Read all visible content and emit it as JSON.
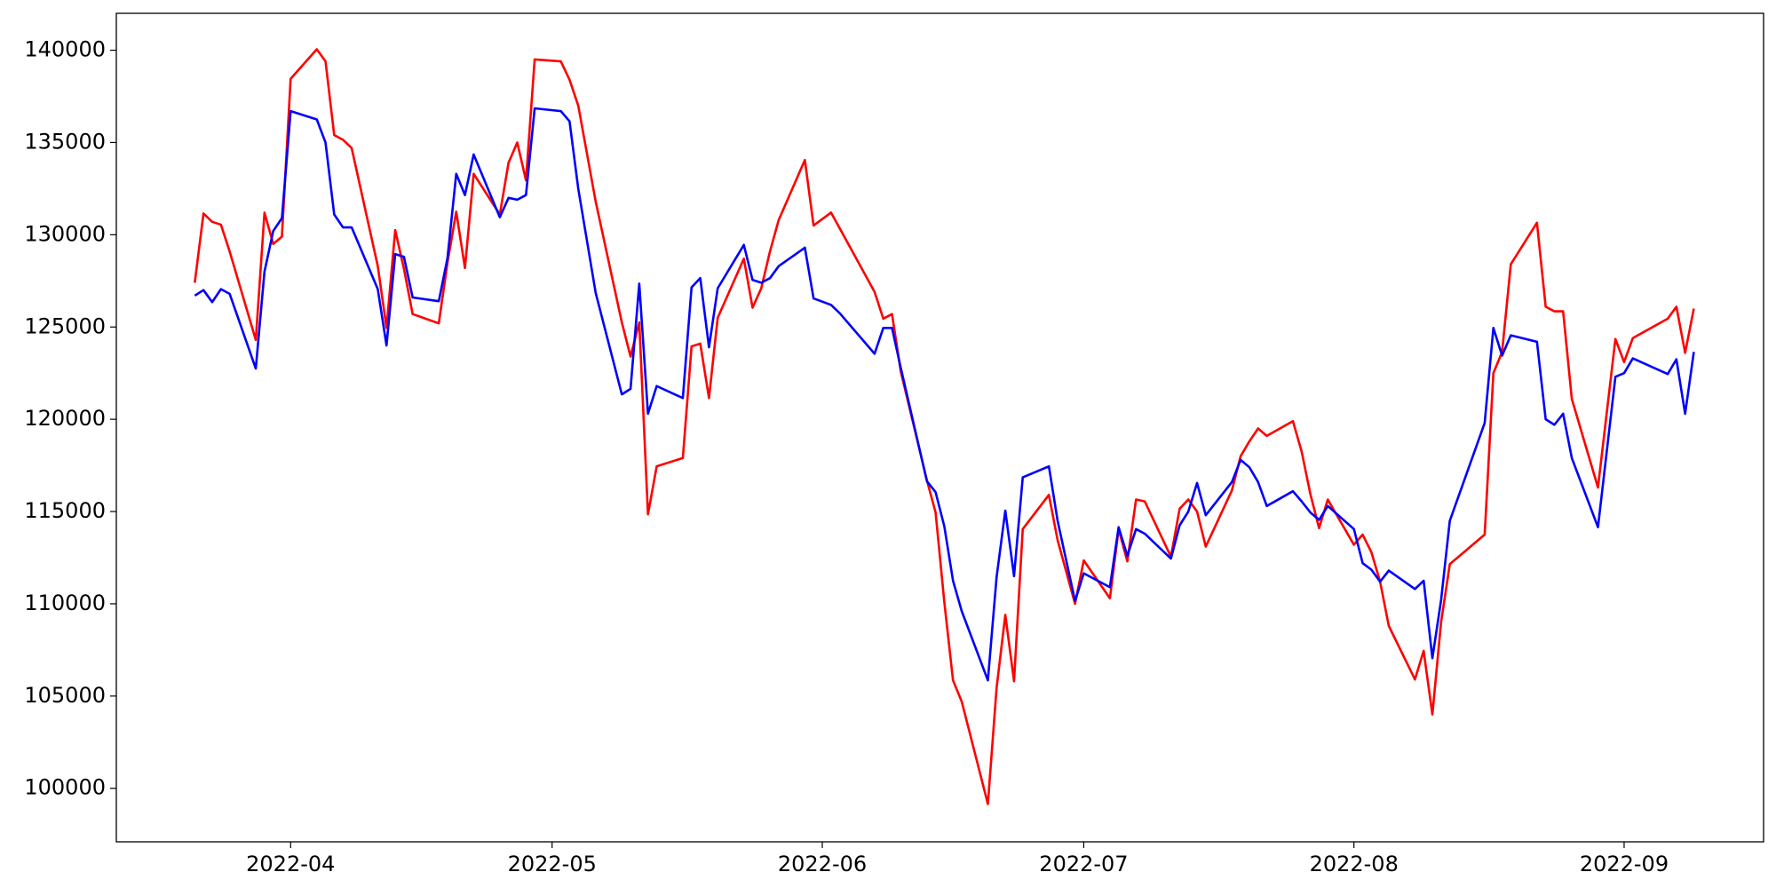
{
  "chart_data": {
    "type": "line",
    "x": [
      "2022-03-21",
      "2022-03-22",
      "2022-03-23",
      "2022-03-24",
      "2022-03-25",
      "2022-03-28",
      "2022-03-29",
      "2022-03-30",
      "2022-03-31",
      "2022-04-01",
      "2022-04-04",
      "2022-04-05",
      "2022-04-06",
      "2022-04-07",
      "2022-04-08",
      "2022-04-11",
      "2022-04-12",
      "2022-04-13",
      "2022-04-14",
      "2022-04-15",
      "2022-04-18",
      "2022-04-19",
      "2022-04-20",
      "2022-04-21",
      "2022-04-22",
      "2022-04-25",
      "2022-04-26",
      "2022-04-27",
      "2022-04-28",
      "2022-04-29",
      "2022-05-02",
      "2022-05-03",
      "2022-05-04",
      "2022-05-06",
      "2022-05-09",
      "2022-05-10",
      "2022-05-11",
      "2022-05-12",
      "2022-05-13",
      "2022-05-16",
      "2022-05-17",
      "2022-05-18",
      "2022-05-19",
      "2022-05-20",
      "2022-05-23",
      "2022-05-24",
      "2022-05-25",
      "2022-05-26",
      "2022-05-27",
      "2022-05-30",
      "2022-05-31",
      "2022-06-02",
      "2022-06-03",
      "2022-06-07",
      "2022-06-08",
      "2022-06-09",
      "2022-06-10",
      "2022-06-13",
      "2022-06-14",
      "2022-06-15",
      "2022-06-16",
      "2022-06-17",
      "2022-06-20",
      "2022-06-21",
      "2022-06-22",
      "2022-06-23",
      "2022-06-24",
      "2022-06-27",
      "2022-06-28",
      "2022-06-30",
      "2022-07-01",
      "2022-07-04",
      "2022-07-05",
      "2022-07-06",
      "2022-07-07",
      "2022-07-08",
      "2022-07-11",
      "2022-07-12",
      "2022-07-13",
      "2022-07-14",
      "2022-07-15",
      "2022-07-18",
      "2022-07-19",
      "2022-07-20",
      "2022-07-21",
      "2022-07-22",
      "2022-07-25",
      "2022-07-26",
      "2022-07-27",
      "2022-07-28",
      "2022-07-29",
      "2022-08-01",
      "2022-08-02",
      "2022-08-03",
      "2022-08-04",
      "2022-08-05",
      "2022-08-08",
      "2022-08-09",
      "2022-08-10",
      "2022-08-11",
      "2022-08-12",
      "2022-08-16",
      "2022-08-17",
      "2022-08-18",
      "2022-08-19",
      "2022-08-22",
      "2022-08-23",
      "2022-08-24",
      "2022-08-25",
      "2022-08-26",
      "2022-08-29",
      "2022-08-31",
      "2022-09-01",
      "2022-09-02",
      "2022-09-06",
      "2022-09-07",
      "2022-09-08",
      "2022-09-09"
    ],
    "series": [
      {
        "color": "#ff0000",
        "values": [
          127400,
          131150,
          130700,
          130550,
          129100,
          124300,
          131200,
          129500,
          129900,
          138450,
          140050,
          139400,
          135400,
          135150,
          134700,
          128300,
          124950,
          130250,
          128150,
          125700,
          125200,
          128500,
          131250,
          128200,
          133300,
          131100,
          133900,
          135000,
          132950,
          139500,
          139400,
          138400,
          137000,
          131800,
          125250,
          123400,
          125250,
          114850,
          117450,
          117900,
          123950,
          124100,
          121150,
          125500,
          128700,
          126050,
          127100,
          129100,
          130800,
          134050,
          130500,
          131200,
          130350,
          126900,
          125450,
          125700,
          122600,
          116700,
          114950,
          110100,
          105850,
          104700,
          99150,
          105450,
          109400,
          105800,
          114050,
          115900,
          113450,
          110000,
          112350,
          110300,
          114050,
          112300,
          115650,
          115550,
          112550,
          115150,
          115650,
          115000,
          113100,
          116150,
          118000,
          118800,
          119500,
          119100,
          119900,
          118250,
          115950,
          114100,
          115650,
          113200,
          113750,
          112800,
          111200,
          108800,
          105900,
          107450,
          104000,
          109000,
          112150,
          113750,
          122500,
          123650,
          128400,
          130650,
          126100,
          125850,
          125850,
          121100,
          116300,
          124350,
          123100,
          124400,
          125450,
          126100,
          123600,
          126000
        ]
      },
      {
        "color": "#0000ff",
        "values": [
          126700,
          127000,
          126350,
          127050,
          126800,
          122750,
          128000,
          130200,
          130900,
          136700,
          136250,
          135000,
          131100,
          130400,
          130400,
          127050,
          124000,
          128950,
          128800,
          126600,
          126400,
          128750,
          133300,
          132150,
          134350,
          130950,
          132000,
          131900,
          132150,
          136850,
          136700,
          136150,
          132500,
          126850,
          121350,
          121650,
          127350,
          120300,
          121800,
          121150,
          127150,
          127650,
          123900,
          127100,
          129450,
          127550,
          127400,
          127650,
          128300,
          129300,
          126550,
          126200,
          125750,
          123550,
          124950,
          124950,
          122800,
          116650,
          116050,
          114200,
          111250,
          109600,
          105850,
          111450,
          115050,
          111500,
          116850,
          117450,
          114500,
          110150,
          111650,
          110900,
          114150,
          112600,
          114050,
          113800,
          112450,
          114250,
          115000,
          116550,
          114800,
          116600,
          117800,
          117400,
          116600,
          115300,
          116100,
          115550,
          114950,
          114550,
          115300,
          114050,
          112200,
          111850,
          111200,
          111800,
          110800,
          111250,
          107050,
          110200,
          114500,
          119800,
          124950,
          123450,
          124550,
          124200,
          120000,
          119700,
          120300,
          117900,
          114150,
          122300,
          122500,
          123300,
          122450,
          123250,
          120300,
          123650
        ]
      }
    ],
    "xlim": [
      "2022-03-12",
      "2022-09-17"
    ],
    "xticks": [
      {
        "value": "2022-04-01",
        "label": "2022-04"
      },
      {
        "value": "2022-05-01",
        "label": "2022-05"
      },
      {
        "value": "2022-06-01",
        "label": "2022-06"
      },
      {
        "value": "2022-07-01",
        "label": "2022-07"
      },
      {
        "value": "2022-08-01",
        "label": "2022-08"
      },
      {
        "value": "2022-09-01",
        "label": "2022-09"
      }
    ],
    "ylim": [
      97100,
      142000
    ],
    "yticks": [
      100000,
      105000,
      110000,
      115000,
      120000,
      125000,
      130000,
      135000,
      140000
    ],
    "grid": false
  }
}
